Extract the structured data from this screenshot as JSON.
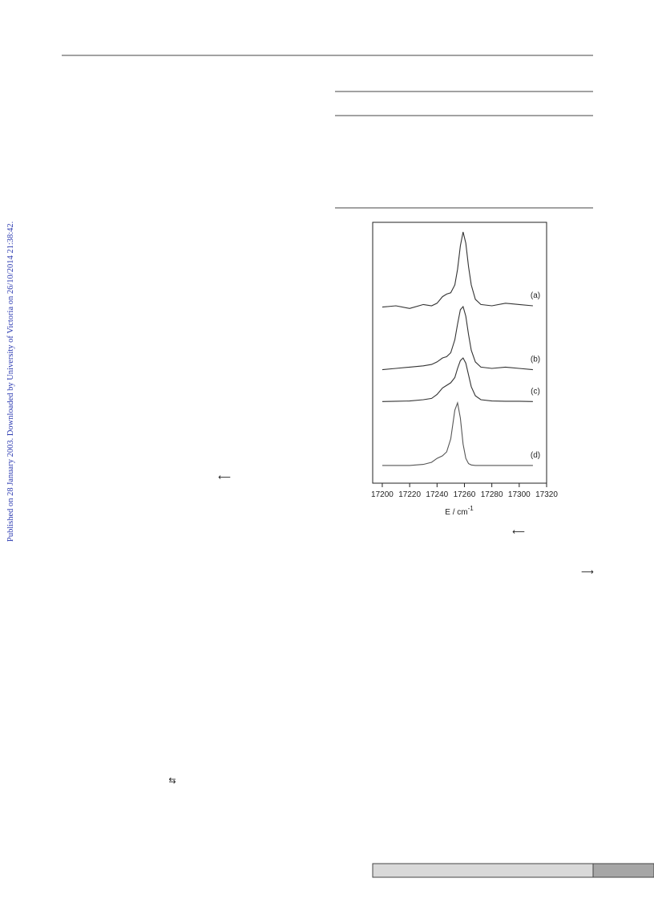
{
  "side_note": "Published on 28 January 2003. Downloaded by University of Victoria on 26/10/2014 21:38:42.",
  "symbols": [
    "⟵",
    "⟵",
    "⟶",
    "⇆"
  ],
  "chart_data": {
    "type": "line",
    "x_label": "E / cm",
    "x_label_sup": "-1",
    "xlim": [
      17193,
      17320
    ],
    "xticks": [
      17200,
      17220,
      17240,
      17260,
      17280,
      17300,
      17320
    ],
    "ylim": [
      0,
      100
    ],
    "x": [
      17200,
      17210,
      17220,
      17230,
      17236,
      17240,
      17244,
      17247,
      17250,
      17253,
      17255,
      17257,
      17259,
      17261,
      17263,
      17265,
      17268,
      17272,
      17280,
      17290,
      17300,
      17310
    ],
    "series": [
      {
        "name": "(a)",
        "color": "#333333",
        "values": [
          67.5,
          68,
          67,
          68.5,
          68,
          69,
          71.5,
          72.5,
          73,
          76,
          82,
          91,
          96.3,
          92,
          83,
          76,
          70.5,
          68.5,
          68,
          69,
          68.5,
          68
        ]
      },
      {
        "name": "(b)",
        "color": "#333333",
        "values": [
          43.5,
          44,
          44.5,
          45,
          45.5,
          46.5,
          48,
          48.5,
          50,
          55,
          61,
          66.5,
          67.7,
          64,
          57,
          51,
          46.5,
          44.5,
          44,
          44.5,
          44,
          43.5
        ]
      },
      {
        "name": "(c)",
        "color": "#333333",
        "values": [
          31.3,
          31.4,
          31.5,
          32,
          32.5,
          34,
          36.5,
          37.5,
          38.5,
          40.5,
          44,
          47,
          48,
          46,
          41.5,
          37,
          33.5,
          32,
          31.5,
          31.4,
          31.4,
          31.3
        ]
      },
      {
        "name": "(d)",
        "color": "#555555",
        "values": [
          6.8,
          6.8,
          6.8,
          7.2,
          8,
          9.5,
          10.5,
          12,
          17,
          28,
          30.8,
          25,
          15,
          9.5,
          7.5,
          7,
          6.8,
          6.8,
          6.8,
          6.8,
          6.8,
          6.8
        ]
      }
    ]
  }
}
